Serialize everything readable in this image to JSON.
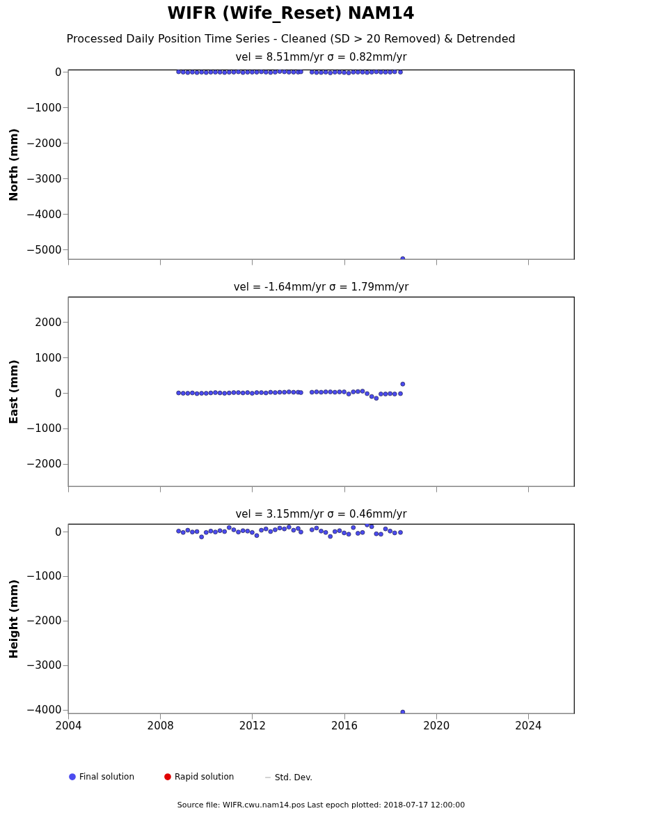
{
  "chart_data": [
    {
      "type": "scatter",
      "title": "WIFR (Wife_Reset) NAM14",
      "subtitle": "Processed Daily Position Time Series - Cleaned (SD > 20 Removed) & Detrended",
      "annotations": [
        "vel = 8.51mm/yr   σ = 0.82mm/yr"
      ],
      "ylabel": "North (mm)",
      "x": [
        2008.8,
        2009.0,
        2009.2,
        2009.4,
        2009.6,
        2009.8,
        2010.0,
        2010.2,
        2010.4,
        2010.6,
        2010.8,
        2011.0,
        2011.2,
        2011.4,
        2011.6,
        2011.8,
        2012.0,
        2012.2,
        2012.4,
        2012.6,
        2012.8,
        2013.0,
        2013.2,
        2013.4,
        2013.6,
        2013.8,
        2014.0,
        2014.12,
        2014.6,
        2014.8,
        2015.0,
        2015.2,
        2015.4,
        2015.6,
        2015.8,
        2016.0,
        2016.2,
        2016.4,
        2016.6,
        2016.8,
        2017.0,
        2017.2,
        2017.4,
        2017.6,
        2017.8,
        2018.0,
        2018.2,
        2018.45,
        2018.55
      ],
      "series": [
        {
          "color": "#4b4bef",
          "values": [
            0,
            -10,
            -20,
            -10,
            -20,
            -10,
            -20,
            -10,
            -10,
            -10,
            -20,
            -10,
            -10,
            0,
            -20,
            -10,
            -10,
            -10,
            0,
            -10,
            -20,
            -10,
            10,
            0,
            -10,
            -10,
            -10,
            0,
            -10,
            -20,
            -20,
            -10,
            -30,
            -10,
            -10,
            -20,
            -30,
            -10,
            -10,
            -10,
            -20,
            -10,
            0,
            -10,
            -10,
            -10,
            0,
            -10,
            -5250
          ]
        }
      ],
      "xlim": [
        2004,
        2026
      ],
      "xticks": [
        2004,
        2008,
        2012,
        2016,
        2020,
        2024
      ],
      "ylim": [
        -5265,
        60
      ],
      "yticks": [
        -5000,
        -4000,
        -3000,
        -2000,
        -1000,
        0
      ],
      "tick_labels": "y",
      "marker": "circle",
      "grid": false,
      "legend": false
    },
    {
      "type": "scatter",
      "title": "vel = -1.64mm/yr   σ = 1.79mm/yr",
      "ylabel": "East (mm)",
      "x": [
        2008.8,
        2009.0,
        2009.2,
        2009.4,
        2009.6,
        2009.8,
        2010.0,
        2010.2,
        2010.4,
        2010.6,
        2010.8,
        2011.0,
        2011.2,
        2011.4,
        2011.6,
        2011.8,
        2012.0,
        2012.2,
        2012.4,
        2012.6,
        2012.8,
        2013.0,
        2013.2,
        2013.4,
        2013.6,
        2013.8,
        2014.0,
        2014.12,
        2014.6,
        2014.8,
        2015.0,
        2015.2,
        2015.4,
        2015.6,
        2015.8,
        2016.0,
        2016.2,
        2016.4,
        2016.6,
        2016.8,
        2017.0,
        2017.2,
        2017.4,
        2017.6,
        2017.8,
        2018.0,
        2018.2,
        2018.45,
        2018.55
      ],
      "series": [
        {
          "color": "#4b4bef",
          "values": [
            0,
            -10,
            -10,
            0,
            -20,
            -10,
            -10,
            0,
            10,
            0,
            -10,
            0,
            10,
            10,
            0,
            10,
            -10,
            10,
            10,
            0,
            20,
            10,
            20,
            20,
            30,
            20,
            20,
            10,
            20,
            30,
            20,
            30,
            30,
            20,
            30,
            30,
            -30,
            30,
            40,
            50,
            -20,
            -100,
            -150,
            -30,
            -30,
            -20,
            -30,
            -20,
            250
          ]
        }
      ],
      "xlim": [
        2004,
        2026
      ],
      "xticks": [
        2004,
        2008,
        2012,
        2016,
        2020,
        2024
      ],
      "ylim": [
        -2630,
        2710
      ],
      "yticks": [
        -2000,
        -1000,
        0,
        1000,
        2000
      ],
      "tick_labels": "y",
      "marker": "circle",
      "grid": false,
      "legend": false
    },
    {
      "type": "scatter",
      "title": "vel = 3.15mm/yr   σ = 0.46mm/yr",
      "ylabel": "Height (mm)",
      "annotations": [
        "Source file: WIFR.cwu.nam14.pos  Last epoch plotted: 2018-07-17 12:00:00"
      ],
      "x": [
        2008.8,
        2009.0,
        2009.2,
        2009.4,
        2009.6,
        2009.8,
        2010.0,
        2010.2,
        2010.4,
        2010.6,
        2010.8,
        2011.0,
        2011.2,
        2011.4,
        2011.6,
        2011.8,
        2012.0,
        2012.2,
        2012.4,
        2012.6,
        2012.8,
        2013.0,
        2013.2,
        2013.4,
        2013.6,
        2013.8,
        2014.0,
        2014.12,
        2014.6,
        2014.8,
        2015.0,
        2015.2,
        2015.4,
        2015.6,
        2015.8,
        2016.0,
        2016.2,
        2016.4,
        2016.6,
        2016.8,
        2017.0,
        2017.2,
        2017.4,
        2017.6,
        2017.8,
        2018.0,
        2018.2,
        2018.45,
        2018.55
      ],
      "series": [
        {
          "name": "Final solution",
          "color": "#4b4bef",
          "values": [
            10,
            -20,
            30,
            -10,
            0,
            -120,
            -20,
            10,
            -10,
            20,
            0,
            90,
            40,
            -10,
            20,
            10,
            -20,
            -90,
            30,
            60,
            0,
            40,
            80,
            60,
            100,
            30,
            70,
            -10,
            40,
            80,
            10,
            -20,
            -110,
            0,
            20,
            -30,
            -60,
            90,
            -40,
            -20,
            150,
            110,
            -50,
            -60,
            60,
            10,
            -30,
            -20,
            -4050
          ]
        },
        {
          "name": "Rapid solution",
          "color": "#e00000",
          "values": [
            null,
            null,
            null,
            null,
            null,
            null,
            null,
            null,
            null,
            null,
            null,
            null,
            null,
            null,
            null,
            null,
            null,
            null,
            null,
            null,
            null,
            null,
            null,
            null,
            null,
            null,
            null,
            null,
            null,
            null,
            null,
            null,
            null,
            null,
            null,
            null,
            null,
            null,
            null,
            null,
            null,
            null,
            null,
            null,
            null,
            null,
            null,
            null,
            null
          ]
        },
        {
          "name": "Std. Dev.",
          "type": "line",
          "color": "#d3d3d3",
          "values": [
            null,
            null,
            null,
            null,
            null,
            null,
            null,
            null,
            null,
            null,
            null,
            null,
            null,
            null,
            null,
            null,
            null,
            null,
            null,
            null,
            null,
            null,
            null,
            null,
            null,
            null,
            null,
            null,
            null,
            null,
            null,
            null,
            null,
            null,
            null,
            null,
            null,
            null,
            null,
            null,
            null,
            null,
            null,
            null,
            null,
            null,
            null,
            null,
            null
          ]
        }
      ],
      "xlim": [
        2004,
        2026
      ],
      "xticks": [
        2004,
        2008,
        2012,
        2016,
        2020,
        2024
      ],
      "ylim": [
        -4080,
        172
      ],
      "yticks": [
        -4000,
        -3000,
        -2000,
        -1000,
        0
      ],
      "marker": "circle",
      "grid": false,
      "legend": "bottom"
    }
  ]
}
